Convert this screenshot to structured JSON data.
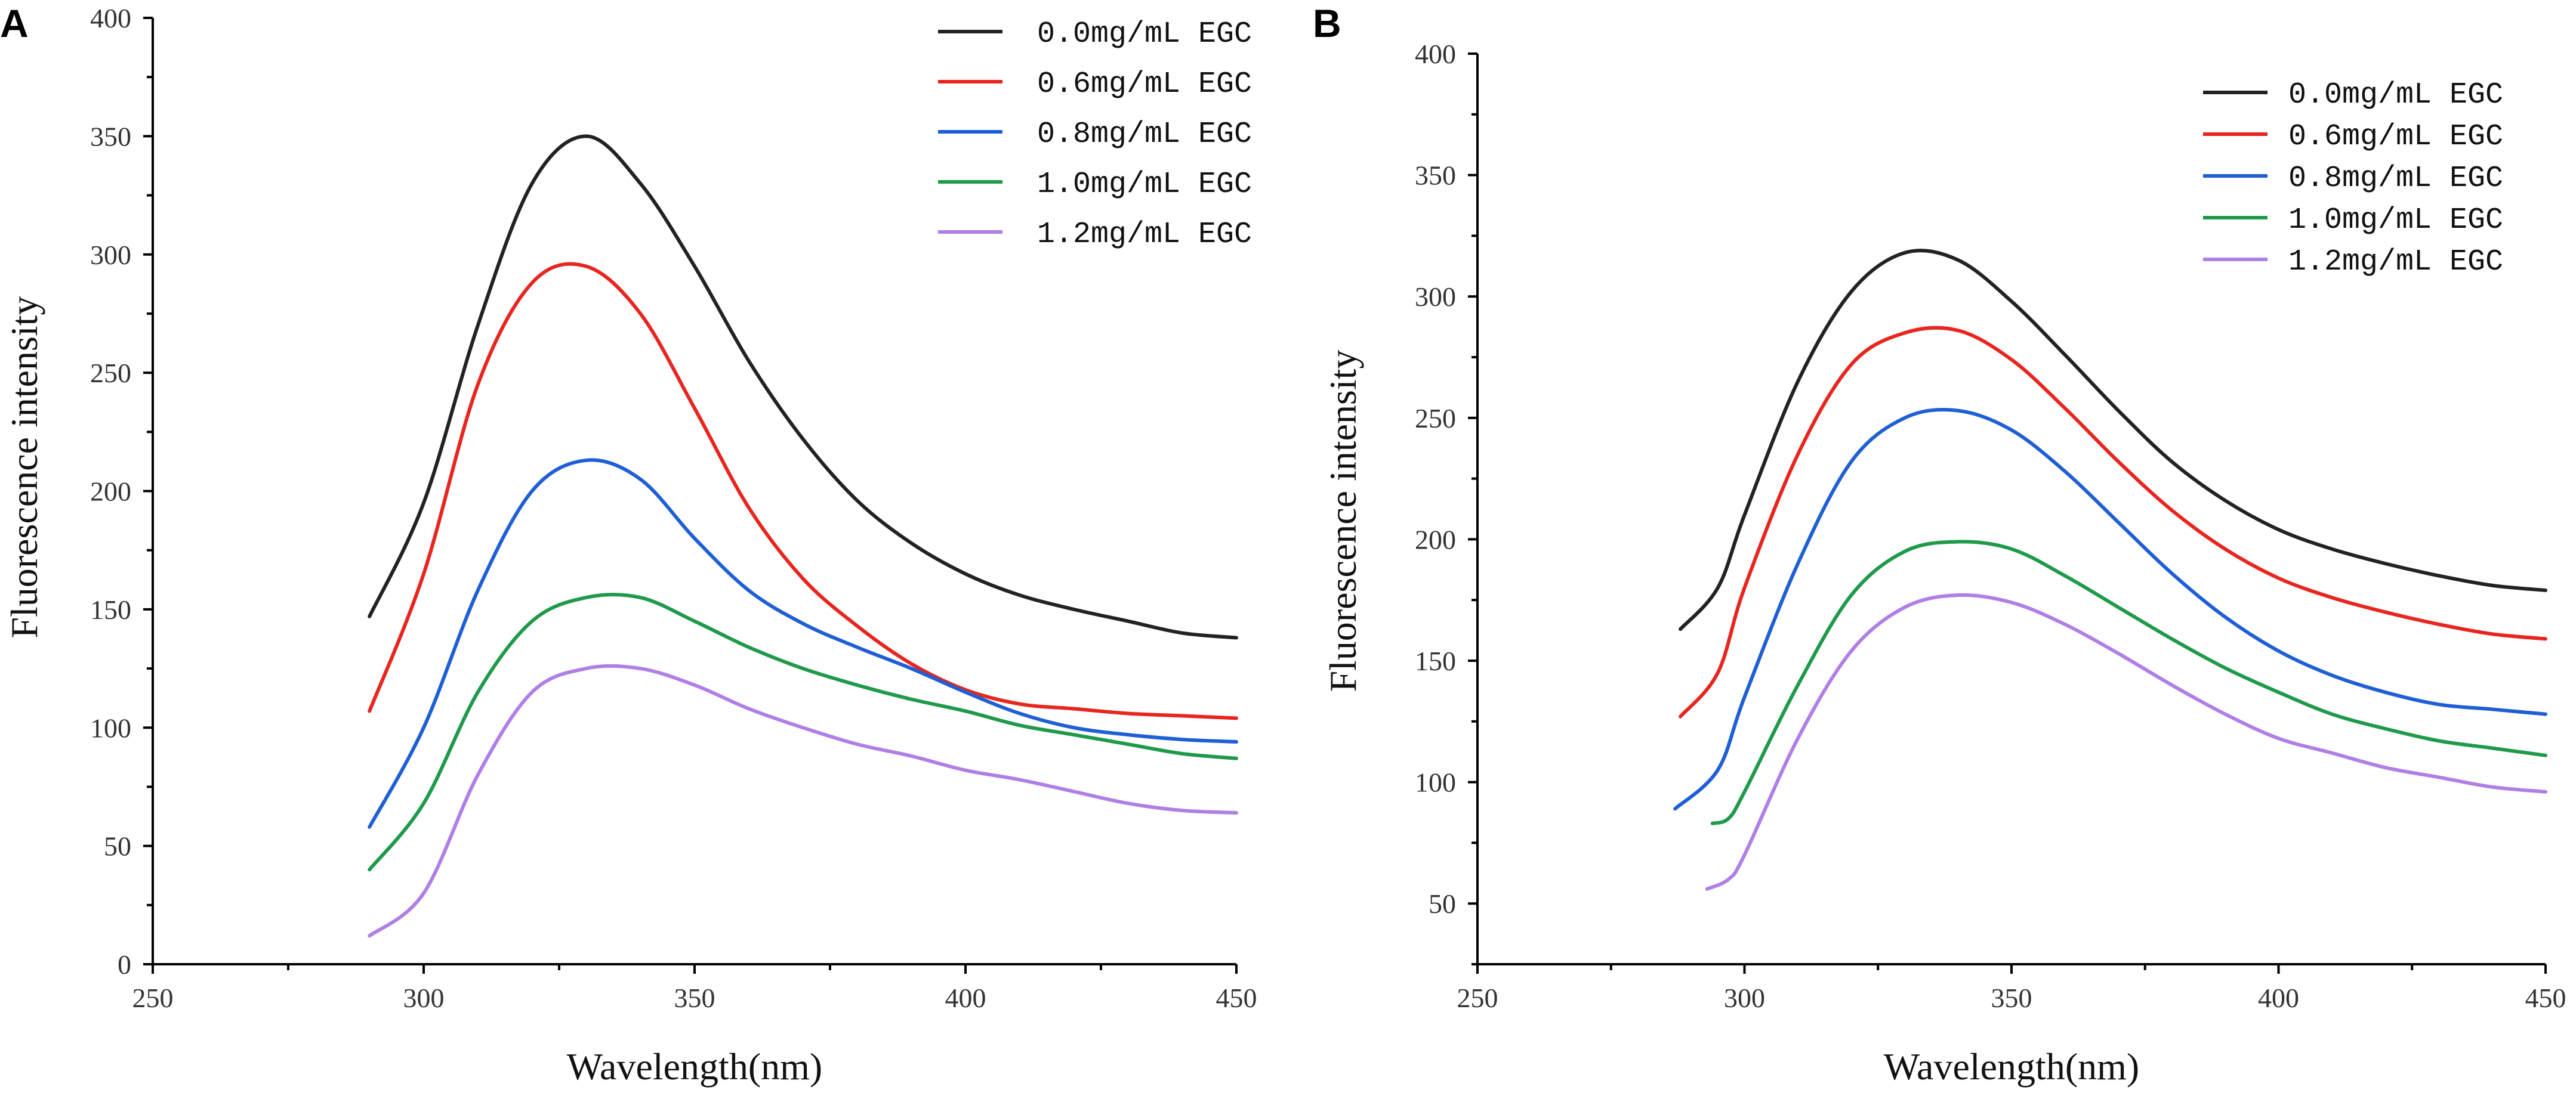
{
  "chart_data": [
    {
      "panel": "A",
      "type": "line",
      "title": "",
      "xlabel": "Wavelength(nm)",
      "ylabel": "Fluorescence intensity",
      "xlim": [
        250,
        450
      ],
      "ylim": [
        0,
        400
      ],
      "xticks": [
        250,
        300,
        350,
        400,
        450
      ],
      "yticks": [
        0,
        50,
        100,
        150,
        200,
        250,
        300,
        350,
        400
      ],
      "grid": false,
      "legend_position": "top-right",
      "x": [
        290,
        300,
        310,
        320,
        330,
        340,
        350,
        360,
        370,
        380,
        390,
        400,
        410,
        420,
        430,
        440,
        450
      ],
      "series": [
        {
          "name": "0.0mg/mL EGC",
          "color": "#222222",
          "x": [
            290,
            300,
            310,
            320,
            330,
            340,
            350,
            360,
            370,
            380,
            390,
            400,
            410,
            420,
            430,
            440,
            450
          ],
          "values": [
            147,
            195,
            270,
            330,
            350,
            330,
            295,
            255,
            222,
            196,
            178,
            165,
            156,
            150,
            145,
            140,
            138
          ]
        },
        {
          "name": "0.6mg/mL EGC",
          "color": "#e8251e",
          "x": [
            290,
            300,
            310,
            320,
            330,
            340,
            350,
            360,
            370,
            380,
            390,
            400,
            410,
            420,
            430,
            440,
            450
          ],
          "values": [
            107,
            165,
            245,
            288,
            295,
            275,
            235,
            193,
            163,
            143,
            127,
            116,
            110,
            108,
            106,
            105,
            104
          ]
        },
        {
          "name": "0.8mg/mL EGC",
          "color": "#1f5fd6",
          "x": [
            290,
            300,
            310,
            320,
            330,
            340,
            350,
            360,
            370,
            380,
            390,
            400,
            410,
            420,
            430,
            440,
            450
          ],
          "values": [
            58,
            100,
            158,
            200,
            213,
            205,
            180,
            158,
            144,
            134,
            125,
            115,
            106,
            100,
            97,
            95,
            94
          ]
        },
        {
          "name": "1.0mg/mL EGC",
          "color": "#1e9a4a",
          "x": [
            290,
            300,
            310,
            320,
            330,
            340,
            350,
            360,
            370,
            380,
            390,
            400,
            410,
            420,
            430,
            440,
            450
          ],
          "values": [
            40,
            68,
            115,
            145,
            155,
            155,
            145,
            134,
            125,
            118,
            112,
            107,
            101,
            97,
            93,
            89,
            87
          ]
        },
        {
          "name": "1.2mg/mL EGC",
          "color": "#b07fe6",
          "x": [
            290,
            300,
            310,
            320,
            330,
            340,
            350,
            360,
            370,
            380,
            390,
            400,
            410,
            420,
            430,
            440,
            450
          ],
          "values": [
            12,
            30,
            80,
            115,
            125,
            125,
            118,
            108,
            100,
            93,
            88,
            82,
            78,
            73,
            68,
            65,
            64
          ]
        }
      ]
    },
    {
      "panel": "B",
      "type": "line",
      "title": "",
      "xlabel": "Wavelength(nm)",
      "ylabel": "Fluorescence intensity",
      "xlim": [
        250,
        450
      ],
      "ylim": [
        25,
        400
      ],
      "xticks": [
        250,
        300,
        350,
        400,
        450
      ],
      "yticks": [
        50,
        100,
        150,
        200,
        250,
        300,
        350,
        400
      ],
      "grid": false,
      "legend_position": "top-right",
      "series": [
        {
          "name": "0.0mg/mL EGC",
          "color": "#222222",
          "x": [
            288,
            295,
            300,
            310,
            320,
            330,
            340,
            350,
            360,
            370,
            380,
            390,
            400,
            410,
            420,
            430,
            440,
            450
          ],
          "values": [
            163,
            180,
            210,
            265,
            302,
            318,
            315,
            298,
            276,
            253,
            232,
            216,
            204,
            196,
            190,
            185,
            181,
            179
          ]
        },
        {
          "name": "0.6mg/mL EGC",
          "color": "#e8251e",
          "x": [
            288,
            295,
            300,
            310,
            320,
            330,
            340,
            350,
            360,
            370,
            380,
            390,
            400,
            410,
            420,
            430,
            440,
            450
          ],
          "values": [
            127,
            145,
            180,
            235,
            272,
            285,
            286,
            274,
            254,
            232,
            212,
            196,
            184,
            176,
            170,
            165,
            161,
            159
          ]
        },
        {
          "name": "0.8mg/mL EGC",
          "color": "#1f5fd6",
          "x": [
            287,
            295,
            300,
            310,
            320,
            330,
            340,
            350,
            360,
            370,
            380,
            390,
            400,
            410,
            420,
            430,
            440,
            450
          ],
          "values": [
            89,
            105,
            135,
            190,
            232,
            250,
            253,
            245,
            228,
            207,
            186,
            168,
            154,
            144,
            137,
            132,
            130,
            128
          ]
        },
        {
          "name": "1.0mg/mL EGC",
          "color": "#1e9a4a",
          "x": [
            294,
            297,
            300,
            310,
            320,
            330,
            340,
            350,
            360,
            370,
            380,
            390,
            400,
            410,
            420,
            430,
            440,
            450
          ],
          "values": [
            83,
            85,
            96,
            140,
            177,
            195,
            199,
            196,
            185,
            172,
            159,
            147,
            137,
            128,
            122,
            117,
            114,
            111
          ]
        },
        {
          "name": "1.2mg/mL EGC",
          "color": "#b07fe6",
          "x": [
            293,
            297,
            300,
            310,
            320,
            330,
            340,
            350,
            360,
            370,
            380,
            390,
            400,
            410,
            420,
            430,
            440,
            450
          ],
          "values": [
            56,
            60,
            70,
            118,
            154,
            172,
            177,
            174,
            165,
            153,
            140,
            128,
            118,
            112,
            106,
            102,
            98,
            96
          ]
        }
      ]
    }
  ]
}
